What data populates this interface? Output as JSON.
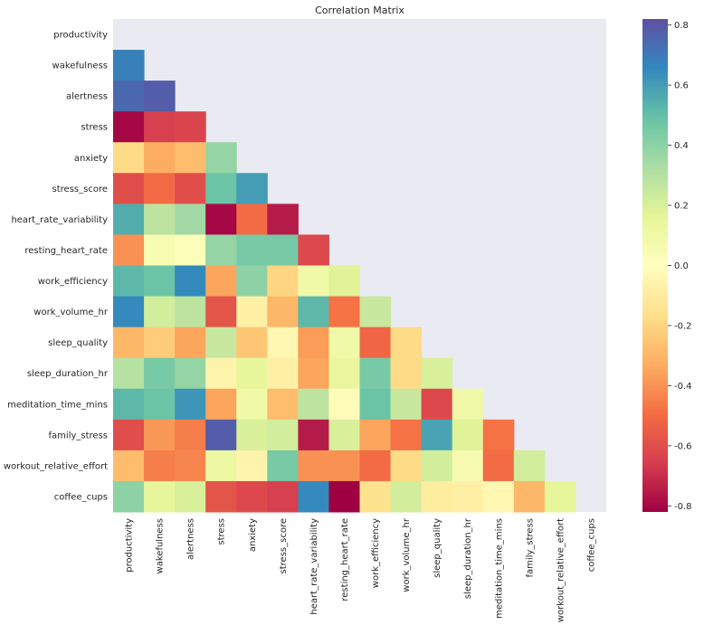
{
  "chart_data": {
    "type": "heatmap",
    "title": "Correlation Matrix",
    "xlabel": "",
    "ylabel": "",
    "mask": "upper-triangle-including-diagonal",
    "variables": [
      "productivity",
      "wakefulness",
      "alertness",
      "stress",
      "anxiety",
      "stress_score",
      "heart_rate_variability",
      "resting_heart_rate",
      "work_efficiency",
      "work_volume_hr",
      "sleep_quality",
      "sleep_duration_hr",
      "meditation_time_mins",
      "family_stress",
      "workout_relative_effort",
      "coffee_cups"
    ],
    "values": [
      [
        null,
        null,
        null,
        null,
        null,
        null,
        null,
        null,
        null,
        null,
        null,
        null,
        null,
        null,
        null,
        null
      ],
      [
        0.68,
        null,
        null,
        null,
        null,
        null,
        null,
        null,
        null,
        null,
        null,
        null,
        null,
        null,
        null,
        null
      ],
      [
        0.75,
        0.78,
        null,
        null,
        null,
        null,
        null,
        null,
        null,
        null,
        null,
        null,
        null,
        null,
        null,
        null
      ],
      [
        -0.8,
        -0.65,
        -0.63,
        null,
        null,
        null,
        null,
        null,
        null,
        null,
        null,
        null,
        null,
        null,
        null,
        null
      ],
      [
        -0.18,
        -0.33,
        -0.28,
        0.38,
        null,
        null,
        null,
        null,
        null,
        null,
        null,
        null,
        null,
        null,
        null,
        null
      ],
      [
        -0.6,
        -0.5,
        -0.6,
        0.48,
        0.6,
        null,
        null,
        null,
        null,
        null,
        null,
        null,
        null,
        null,
        null,
        null
      ],
      [
        0.55,
        0.28,
        0.35,
        -0.8,
        -0.5,
        -0.75,
        null,
        null,
        null,
        null,
        null,
        null,
        null,
        null,
        null,
        null
      ],
      [
        -0.4,
        0.05,
        0.02,
        0.38,
        0.45,
        0.45,
        -0.62,
        null,
        null,
        null,
        null,
        null,
        null,
        null,
        null,
        null
      ],
      [
        0.52,
        0.48,
        0.65,
        -0.35,
        0.4,
        -0.2,
        0.1,
        0.18,
        null,
        null,
        null,
        null,
        null,
        null,
        null,
        null
      ],
      [
        0.65,
        0.22,
        0.28,
        -0.58,
        -0.08,
        -0.3,
        0.52,
        -0.48,
        0.25,
        null,
        null,
        null,
        null,
        null,
        null,
        null
      ],
      [
        -0.3,
        -0.23,
        -0.35,
        0.25,
        -0.25,
        -0.04,
        -0.37,
        0.1,
        -0.52,
        -0.18,
        null,
        null,
        null,
        null,
        null,
        null
      ],
      [
        0.3,
        0.45,
        0.38,
        -0.06,
        0.15,
        -0.08,
        -0.35,
        0.14,
        0.45,
        -0.18,
        0.2,
        null,
        null,
        null,
        null,
        null
      ],
      [
        0.52,
        0.48,
        0.62,
        -0.35,
        0.1,
        -0.28,
        0.28,
        -0.02,
        0.48,
        0.25,
        -0.62,
        0.1,
        null,
        null,
        null,
        null
      ],
      [
        -0.6,
        -0.38,
        -0.45,
        0.78,
        0.2,
        0.22,
        -0.75,
        0.2,
        -0.35,
        -0.48,
        0.58,
        0.18,
        -0.48,
        null,
        null,
        null
      ],
      [
        -0.28,
        -0.45,
        -0.43,
        0.12,
        -0.06,
        0.45,
        -0.4,
        -0.4,
        -0.5,
        -0.18,
        0.22,
        0.06,
        -0.5,
        0.22,
        null,
        null
      ],
      [
        0.4,
        0.15,
        0.2,
        -0.58,
        -0.62,
        -0.65,
        0.65,
        -0.82,
        -0.15,
        0.22,
        -0.1,
        -0.08,
        -0.04,
        -0.3,
        0.15,
        null
      ]
    ],
    "colorbar": {
      "colormap": "Spectral",
      "vmin": -0.82,
      "vmax": 0.82,
      "ticks": [
        "0.8",
        "0.6",
        "0.4",
        "0.2",
        "0.0",
        "-0.2",
        "-0.4",
        "-0.6",
        "-0.8"
      ],
      "tick_values": [
        0.8,
        0.6,
        0.4,
        0.2,
        0.0,
        -0.2,
        -0.4,
        -0.6,
        -0.8
      ]
    },
    "grid": false,
    "legend": "colorbar-right"
  }
}
